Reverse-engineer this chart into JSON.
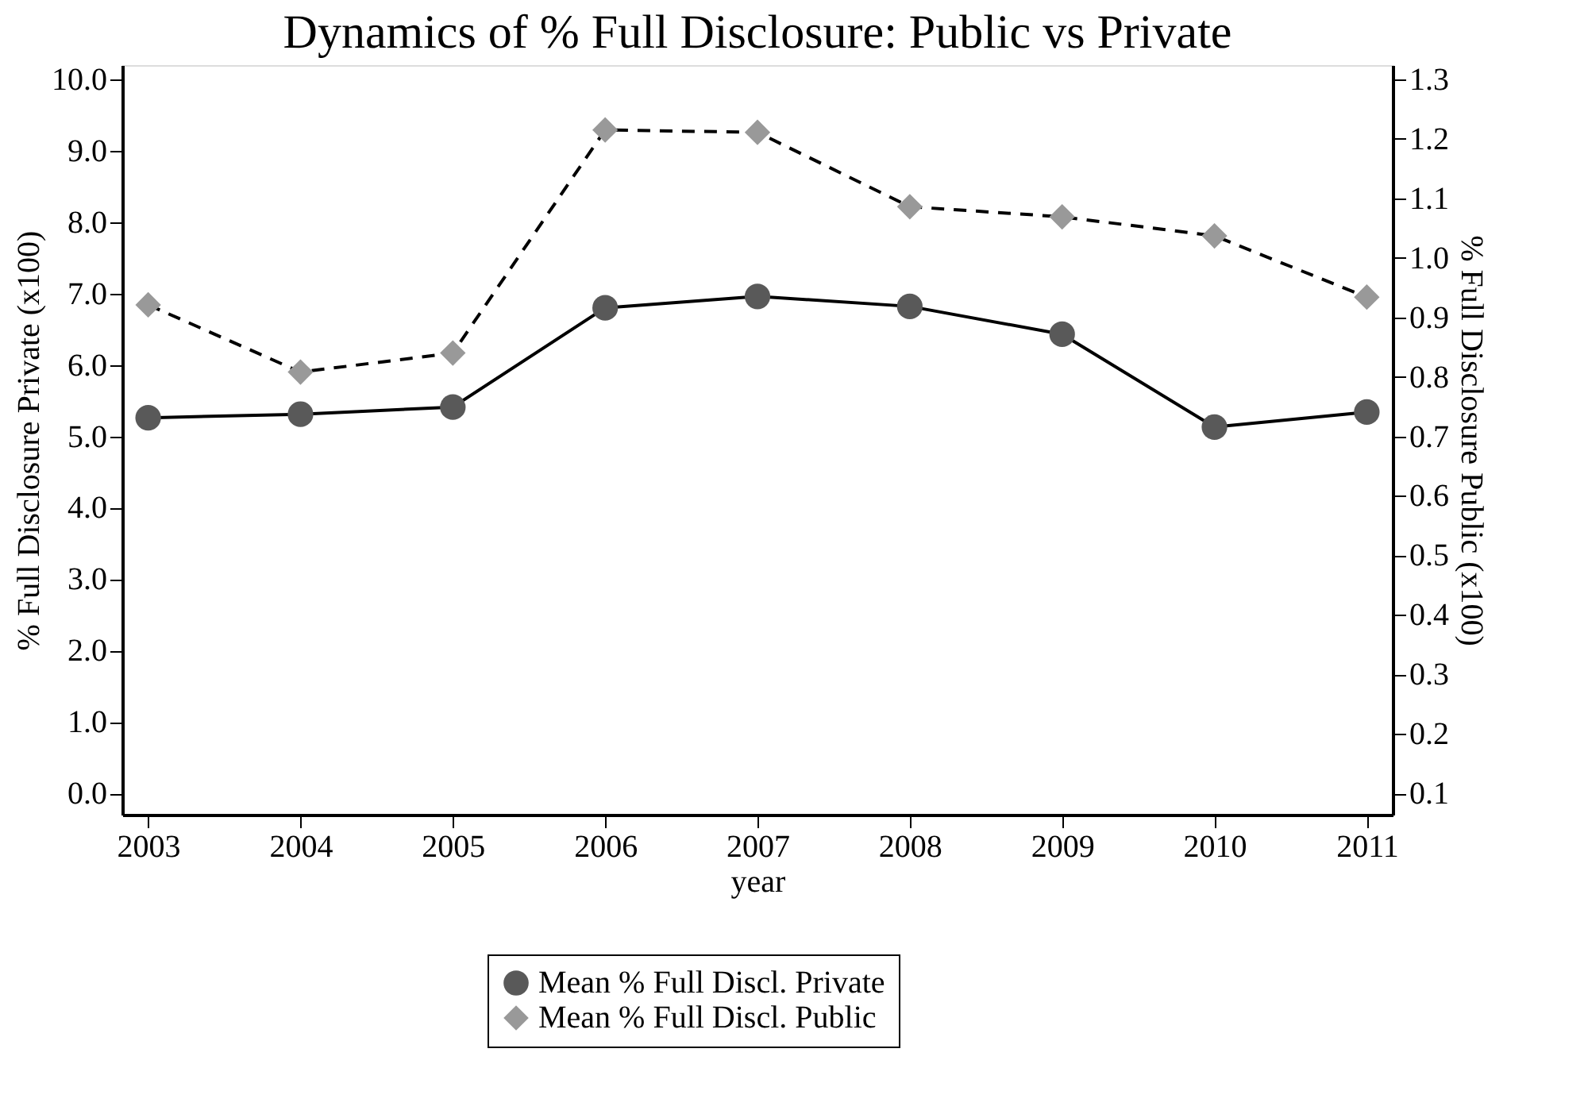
{
  "chart_data": {
    "type": "line",
    "title": "Dynamics of % Full Disclosure: Public vs Private",
    "xlabel": "year",
    "ylabel": "% Full Disclosure Private (x100)",
    "y2label": "% Full Disclosure Public (x100)",
    "x": [
      2003,
      2004,
      2005,
      2006,
      2007,
      2008,
      2009,
      2010,
      2011
    ],
    "series": [
      {
        "name": "Mean % Full Discl. Private",
        "color": "#595959",
        "marker": "circle",
        "line_style": "solid",
        "values": [
          5.26,
          5.31,
          5.41,
          6.8,
          6.96,
          6.82,
          6.43,
          5.13,
          5.34
        ]
      },
      {
        "name": "Mean % Full Discl. Public",
        "color": "#999999",
        "marker": "diamond",
        "line_style": "dashed",
        "axis": "y2",
        "values": [
          0.921,
          0.808,
          0.84,
          1.215,
          1.211,
          1.086,
          1.069,
          1.037,
          0.934
        ]
      }
    ],
    "xlim": [
      2002.83,
      2011.17
    ],
    "xticks": [
      2003,
      2004,
      2005,
      2006,
      2007,
      2008,
      2009,
      2010,
      2011
    ],
    "ylim": [
      -0.3,
      10.2
    ],
    "yticks": [
      {
        "value": 0,
        "label": "0.0"
      },
      {
        "value": 1,
        "label": "1.0"
      },
      {
        "value": 2,
        "label": "2.0"
      },
      {
        "value": 3,
        "label": "3.0"
      },
      {
        "value": 4,
        "label": "4.0"
      },
      {
        "value": 5,
        "label": "5.0"
      },
      {
        "value": 6,
        "label": "6.0"
      },
      {
        "value": 7,
        "label": "7.0"
      },
      {
        "value": 8,
        "label": "8.0"
      },
      {
        "value": 9,
        "label": "9.0"
      },
      {
        "value": 10,
        "label": "10.0"
      }
    ],
    "y2lim": [
      0.064,
      1.324
    ],
    "y2ticks": [
      0.1,
      0.2,
      0.3,
      0.4,
      0.5,
      0.6,
      0.7,
      0.8,
      0.9,
      {
        "value": 1,
        "label": "1.0"
      },
      1.1,
      1.2,
      1.3
    ],
    "grid": false,
    "legend": "bottom"
  }
}
